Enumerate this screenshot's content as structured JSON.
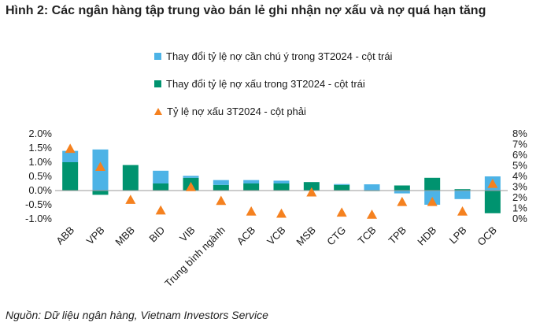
{
  "title": "Hình 2: Các ngân hàng tập trung vào bán lẻ ghi nhận nợ xấu và nợ quá hạn tăng",
  "source": "Nguồn: Dữ liệu ngân hàng, Vietnam Investors Service",
  "colors": {
    "watch": "#4DB3E6",
    "npl": "#00936F",
    "ratio": "#F5811F"
  },
  "chart_data": {
    "type": "bar",
    "categories": [
      "ABB",
      "VPB",
      "MBB",
      "BID",
      "VIB",
      "Trung bình ngành",
      "ACB",
      "VCB",
      "MSB",
      "CTG",
      "TCB",
      "TPB",
      "HDB",
      "LPB",
      "OCB"
    ],
    "series": [
      {
        "name": "Thay đổi tỷ lệ nợ cần chú ý trong 3T2024 - cột trái",
        "axis": "left",
        "kind": "stacked-bar",
        "values": [
          0.4,
          1.45,
          0.0,
          0.45,
          0.07,
          0.17,
          0.12,
          0.1,
          0.0,
          0.03,
          0.22,
          -0.1,
          -0.5,
          -0.3,
          0.5
        ]
      },
      {
        "name": "Thay đổi tỷ lệ nợ xấu trong 3T2024 - cột trái",
        "axis": "left",
        "kind": "stacked-bar",
        "values": [
          1.0,
          -0.15,
          0.9,
          0.25,
          0.45,
          0.2,
          0.25,
          0.25,
          0.3,
          0.2,
          -0.02,
          0.18,
          0.45,
          0.05,
          -0.8
        ]
      },
      {
        "name": "Tỷ lệ nợ xấu 3T2024 - cột phải",
        "axis": "right",
        "kind": "marker",
        "values": [
          6.6,
          4.9,
          1.8,
          0.8,
          3.0,
          1.7,
          0.7,
          0.5,
          2.5,
          0.6,
          0.4,
          1.6,
          1.6,
          0.7,
          3.3
        ]
      }
    ],
    "left_axis": {
      "min": -1.0,
      "max": 2.0,
      "step": 0.5,
      "ticks": [
        "-1.0%",
        "-0.5%",
        "0.0%",
        "0.5%",
        "1.0%",
        "1.5%",
        "2.0%"
      ]
    },
    "right_axis": {
      "min": 0,
      "max": 8,
      "step": 1,
      "ticks": [
        "0%",
        "1%",
        "2%",
        "3%",
        "4%",
        "5%",
        "6%",
        "7%",
        "8%"
      ]
    },
    "grid": false,
    "legend_position": "top-center"
  }
}
